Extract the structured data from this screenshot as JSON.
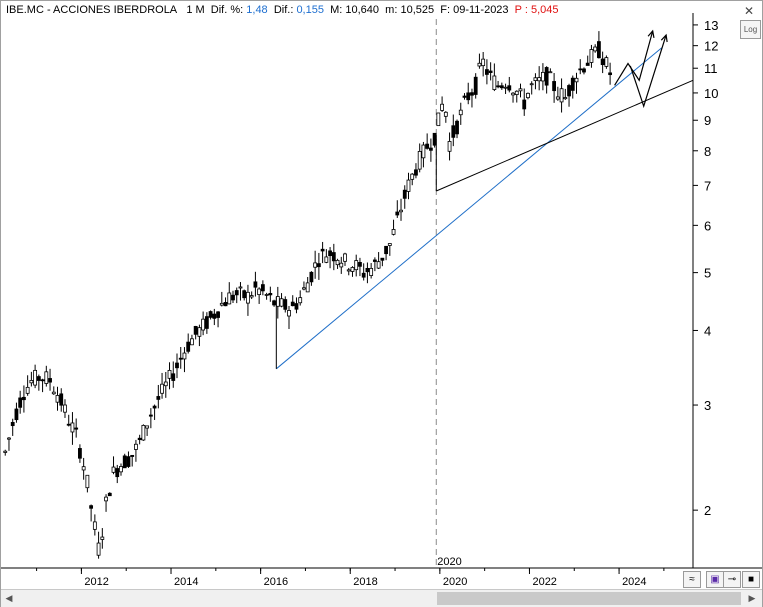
{
  "header": {
    "symbol": "IBE.MC - ACCIONES IBERDROLA",
    "period": "1 M",
    "dif_pct_label": "Dif. %:",
    "dif_pct_value": "1,48",
    "dif_label": "Dif.:",
    "dif_value": "0,155",
    "max_label": "M:",
    "max_value": "10,640",
    "min_label": "m:",
    "min_value": "10,525",
    "date_label": "F:",
    "date_value": "09-11-2023",
    "p_label": "P :",
    "p_value": "5,045"
  },
  "controls": {
    "log_button": "Log",
    "close_icon": "close-icon",
    "tool_icons": [
      "zigzag-icon",
      "save-icon",
      "pin-icon",
      "black-square-icon"
    ]
  },
  "colors": {
    "candles": "#000000",
    "trendline_blue": "#1f6fc8",
    "trendline_black": "#000000",
    "dif_value": "#1e6fd0",
    "p_value": "#e01010"
  },
  "chart_data": {
    "type": "candlestick",
    "title": "IBE.MC - ACCIONES IBERDROLA",
    "period": "1 M",
    "y_scale": "log",
    "ylim": [
      1.6,
      13.3
    ],
    "y_ticks": [
      2,
      3,
      4,
      5,
      6,
      7,
      8,
      9,
      10,
      11,
      12,
      13
    ],
    "xlim": [
      2010.25,
      2025.65
    ],
    "x_ticks": [
      "2012",
      "2014",
      "2016",
      "2018",
      "2020",
      "2022",
      "2024"
    ],
    "x_tick_positions": [
      2012,
      2014,
      2016,
      2018,
      2020,
      2022,
      2024
    ],
    "vertical_marker": {
      "x": 2019.92,
      "label": "2020"
    },
    "price_path": [
      [
        2010.3,
        2.5
      ],
      [
        2010.5,
        2.85
      ],
      [
        2010.7,
        3.15
      ],
      [
        2010.9,
        3.3
      ],
      [
        2011.1,
        3.35
      ],
      [
        2011.3,
        3.3
      ],
      [
        2011.5,
        3.1
      ],
      [
        2011.7,
        2.85
      ],
      [
        2011.9,
        2.65
      ],
      [
        2012.1,
        2.3
      ],
      [
        2012.25,
        1.95
      ],
      [
        2012.4,
        1.7
      ],
      [
        2012.55,
        2.05
      ],
      [
        2012.7,
        2.3
      ],
      [
        2012.9,
        2.4
      ],
      [
        2013.1,
        2.45
      ],
      [
        2013.3,
        2.6
      ],
      [
        2013.5,
        2.85
      ],
      [
        2013.7,
        3.05
      ],
      [
        2013.9,
        3.25
      ],
      [
        2014.1,
        3.45
      ],
      [
        2014.3,
        3.7
      ],
      [
        2014.5,
        3.9
      ],
      [
        2014.7,
        4.05
      ],
      [
        2014.9,
        4.2
      ],
      [
        2015.1,
        4.4
      ],
      [
        2015.3,
        4.55
      ],
      [
        2015.5,
        4.6
      ],
      [
        2015.7,
        4.55
      ],
      [
        2015.9,
        4.7
      ],
      [
        2016.1,
        4.6
      ],
      [
        2016.3,
        4.45
      ],
      [
        2016.5,
        4.4
      ],
      [
        2016.7,
        4.35
      ],
      [
        2016.9,
        4.55
      ],
      [
        2017.1,
        4.9
      ],
      [
        2017.3,
        5.3
      ],
      [
        2017.5,
        5.4
      ],
      [
        2017.7,
        5.35
      ],
      [
        2017.9,
        5.2
      ],
      [
        2018.1,
        5.15
      ],
      [
        2018.3,
        5.0
      ],
      [
        2018.5,
        5.1
      ],
      [
        2018.7,
        5.3
      ],
      [
        2018.9,
        5.6
      ],
      [
        2019.1,
        6.3
      ],
      [
        2019.3,
        7.0
      ],
      [
        2019.5,
        7.6
      ],
      [
        2019.7,
        8.1
      ],
      [
        2019.9,
        8.5
      ],
      [
        2020.1,
        9.9
      ],
      [
        2020.2,
        8.2
      ],
      [
        2020.4,
        8.9
      ],
      [
        2020.6,
        9.8
      ],
      [
        2020.8,
        10.3
      ],
      [
        2020.95,
        11.3
      ],
      [
        2021.1,
        10.7
      ],
      [
        2021.3,
        10.3
      ],
      [
        2021.5,
        10.5
      ],
      [
        2021.7,
        10.1
      ],
      [
        2021.9,
        9.6
      ],
      [
        2022.0,
        10.2
      ],
      [
        2022.2,
        10.4
      ],
      [
        2022.4,
        10.7
      ],
      [
        2022.6,
        10.1
      ],
      [
        2022.8,
        9.8
      ],
      [
        2023.0,
        10.6
      ],
      [
        2023.2,
        11.1
      ],
      [
        2023.4,
        11.5
      ],
      [
        2023.55,
        11.8
      ],
      [
        2023.7,
        11.2
      ],
      [
        2023.85,
        10.6
      ]
    ],
    "trendlines": [
      {
        "color": "#1f6fc8",
        "from": [
          2016.35,
          3.45
        ],
        "to": [
          2024.95,
          11.9
        ]
      },
      {
        "color": "#000000",
        "from": [
          2019.92,
          6.85
        ],
        "to": [
          2025.65,
          10.5
        ]
      },
      {
        "color": "#000000",
        "from": [
          2016.35,
          4.55
        ],
        "to": [
          2016.35,
          3.45
        ]
      },
      {
        "color": "#000000",
        "from": [
          2019.92,
          8.5
        ],
        "to": [
          2019.92,
          6.85
        ]
      }
    ],
    "projection_arrows": [
      [
        [
          2023.9,
          10.3
        ],
        [
          2024.2,
          11.2
        ],
        [
          2024.45,
          10.5
        ],
        [
          2024.75,
          12.7
        ]
      ],
      [
        [
          2024.25,
          11.1
        ],
        [
          2024.55,
          9.5
        ],
        [
          2025.05,
          12.5
        ]
      ]
    ]
  }
}
